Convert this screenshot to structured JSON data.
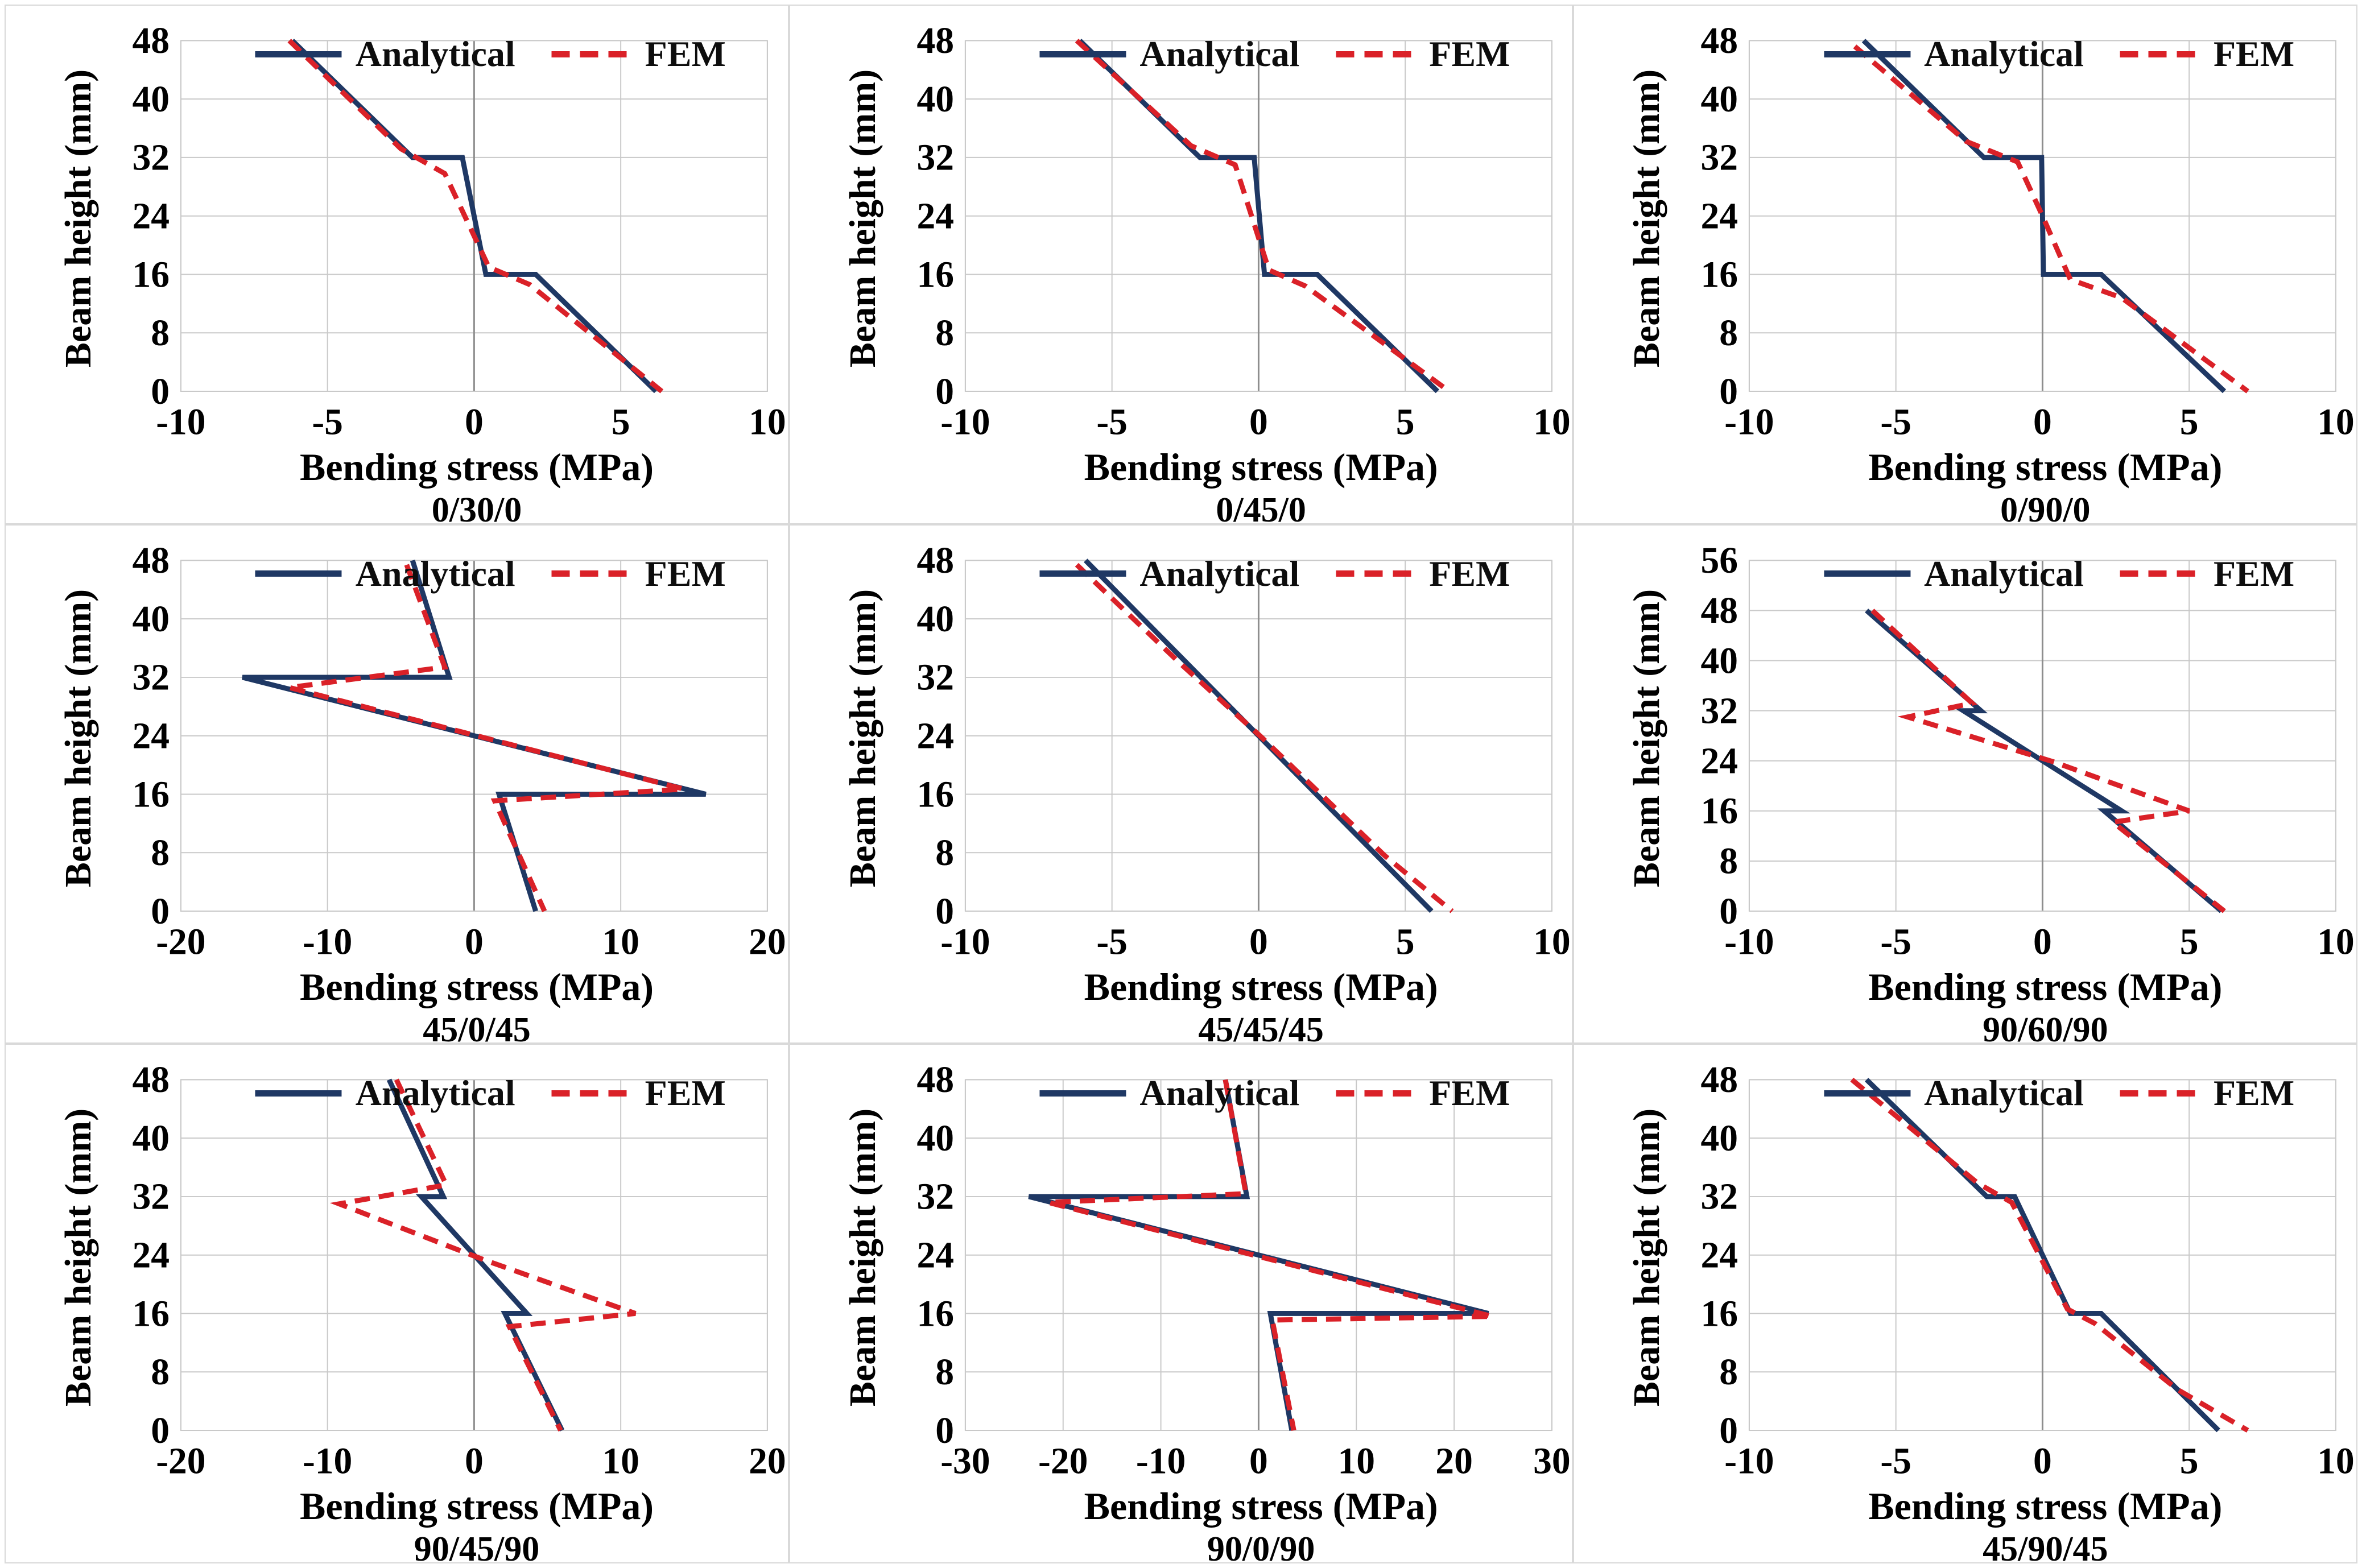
{
  "figure": {
    "legend": {
      "analytical": "Analytical",
      "fem": "FEM"
    },
    "axis": {
      "xlabel": "Bending stress (MPa)",
      "ylabel": "Beam height (mm)"
    },
    "colors": {
      "analytical": "#1F3864",
      "fem": "#DA2128",
      "grid": "#C9C9C9",
      "zero_axis": "#8E8E8E",
      "plot_border": "#C9C9C9",
      "panel_border": "#D9D9D9",
      "text": "#000000"
    }
  },
  "chart_data": [
    {
      "type": "line",
      "title": "0/30/0",
      "xlabel": "Bending stress (MPa)",
      "ylabel": "Beam height (mm)",
      "xlim": [
        -10,
        10
      ],
      "xticks": [
        -10,
        -5,
        0,
        5,
        10
      ],
      "ylim": [
        0,
        48
      ],
      "yticks": [
        0,
        8,
        16,
        24,
        32,
        40,
        48
      ],
      "grid": true,
      "legend_position": "top-center",
      "series": [
        {
          "name": "Analytical",
          "dash": false,
          "points": [
            [
              -6.2,
              48
            ],
            [
              -2.1,
              32
            ],
            [
              -0.4,
              32
            ],
            [
              0.4,
              16
            ],
            [
              2.1,
              16
            ],
            [
              6.2,
              0
            ]
          ]
        },
        {
          "name": "FEM",
          "dash": true,
          "points": [
            [
              -6.3,
              48
            ],
            [
              -2.5,
              33.2
            ],
            [
              -1.0,
              29.8
            ],
            [
              0.5,
              17.0
            ],
            [
              1.9,
              14.6
            ],
            [
              6.4,
              0
            ]
          ]
        }
      ]
    },
    {
      "type": "line",
      "title": "0/45/0",
      "xlabel": "Bending stress (MPa)",
      "ylabel": "Beam height (mm)",
      "xlim": [
        -10,
        10
      ],
      "xticks": [
        -10,
        -5,
        0,
        5,
        10
      ],
      "ylim": [
        0,
        48
      ],
      "yticks": [
        0,
        8,
        16,
        24,
        32,
        40,
        48
      ],
      "grid": true,
      "legend_position": "top-center",
      "series": [
        {
          "name": "Analytical",
          "dash": false,
          "points": [
            [
              -6.1,
              48
            ],
            [
              -2.0,
              32
            ],
            [
              -0.15,
              32
            ],
            [
              0.2,
              16
            ],
            [
              2.0,
              16
            ],
            [
              6.1,
              0
            ]
          ]
        },
        {
          "name": "FEM",
          "dash": true,
          "points": [
            [
              -6.2,
              48
            ],
            [
              -2.3,
              33.6
            ],
            [
              -0.8,
              31.0
            ],
            [
              0.35,
              16.6
            ],
            [
              1.6,
              14.4
            ],
            [
              6.5,
              0
            ]
          ]
        }
      ]
    },
    {
      "type": "line",
      "title": "0/90/0",
      "xlabel": "Bending stress (MPa)",
      "ylabel": "Beam height (mm)",
      "xlim": [
        -10,
        10
      ],
      "xticks": [
        -10,
        -5,
        0,
        5,
        10
      ],
      "ylim": [
        0,
        48
      ],
      "yticks": [
        0,
        8,
        16,
        24,
        32,
        40,
        48
      ],
      "grid": true,
      "legend_position": "top-center",
      "series": [
        {
          "name": "Analytical",
          "dash": false,
          "points": [
            [
              -6.1,
              48
            ],
            [
              -2.0,
              32
            ],
            [
              -0.03,
              32
            ],
            [
              0.03,
              16
            ],
            [
              2.0,
              16
            ],
            [
              6.2,
              0
            ]
          ]
        },
        {
          "name": "FEM",
          "dash": true,
          "points": [
            [
              -6.4,
              47.2
            ],
            [
              -2.6,
              34.2
            ],
            [
              -0.85,
              31.4
            ],
            [
              0.0,
              24.0
            ],
            [
              0.95,
              15.3
            ],
            [
              2.7,
              12.8
            ],
            [
              7.0,
              0
            ]
          ]
        }
      ]
    },
    {
      "type": "line",
      "title": "45/0/45",
      "xlabel": "Bending stress (MPa)",
      "ylabel": "Beam height (mm)",
      "xlim": [
        -20,
        20
      ],
      "xticks": [
        -20,
        -10,
        0,
        10,
        20
      ],
      "ylim": [
        0,
        48
      ],
      "yticks": [
        0,
        8,
        16,
        24,
        32,
        40,
        48
      ],
      "grid": true,
      "legend_position": "top-center",
      "series": [
        {
          "name": "Analytical",
          "dash": false,
          "points": [
            [
              -4.2,
              48
            ],
            [
              -1.7,
              32
            ],
            [
              -15.8,
              32
            ],
            [
              15.8,
              16
            ],
            [
              1.7,
              16
            ],
            [
              4.2,
              0
            ]
          ]
        },
        {
          "name": "FEM",
          "dash": true,
          "points": [
            [
              -4.6,
              47.4
            ],
            [
              -2.0,
              33.4
            ],
            [
              -12.6,
              30.6
            ],
            [
              14.3,
              16.7
            ],
            [
              1.4,
              15.1
            ],
            [
              4.8,
              0
            ]
          ]
        }
      ]
    },
    {
      "type": "line",
      "title": "45/45/45",
      "xlabel": "Bending stress (MPa)",
      "ylabel": "Beam height (mm)",
      "xlim": [
        -10,
        10
      ],
      "xticks": [
        -10,
        -5,
        0,
        5,
        10
      ],
      "ylim": [
        0,
        48
      ],
      "yticks": [
        0,
        8,
        16,
        24,
        32,
        40,
        48
      ],
      "grid": true,
      "legend_position": "top-center",
      "series": [
        {
          "name": "Analytical",
          "dash": false,
          "points": [
            [
              -5.9,
              48
            ],
            [
              5.9,
              0
            ]
          ]
        },
        {
          "name": "FEM",
          "dash": true,
          "points": [
            [
              -6.2,
              47.4
            ],
            [
              -2.7,
              34.0
            ],
            [
              0.1,
              23.8
            ],
            [
              4.3,
              7.6
            ],
            [
              6.6,
              0
            ]
          ]
        }
      ]
    },
    {
      "type": "line",
      "title": "90/60/90",
      "xlabel": "Bending stress (MPa)",
      "ylabel": "Beam height (mm)",
      "xlim": [
        -10,
        10
      ],
      "xticks": [
        -10,
        -5,
        0,
        5,
        10
      ],
      "ylim": [
        0,
        56
      ],
      "yticks": [
        0,
        8,
        16,
        24,
        32,
        40,
        48,
        56
      ],
      "grid": true,
      "legend_position": "top-center",
      "series": [
        {
          "name": "Analytical",
          "dash": false,
          "points": [
            [
              -6.0,
              48
            ],
            [
              -2.1,
              32
            ],
            [
              -2.7,
              32
            ],
            [
              2.7,
              16
            ],
            [
              2.1,
              16
            ],
            [
              6.1,
              0
            ]
          ]
        },
        {
          "name": "FEM",
          "dash": true,
          "points": [
            [
              -5.8,
              48
            ],
            [
              -2.4,
              33.2
            ],
            [
              -4.6,
              31.0
            ],
            [
              0.4,
              23.8
            ],
            [
              5.0,
              16.0
            ],
            [
              2.4,
              14.2
            ],
            [
              6.2,
              0
            ]
          ]
        }
      ]
    },
    {
      "type": "line",
      "title": "90/45/90",
      "xlabel": "Bending stress (MPa)",
      "ylabel": "Beam height (mm)",
      "xlim": [
        -20,
        20
      ],
      "xticks": [
        -20,
        -10,
        0,
        10,
        20
      ],
      "ylim": [
        0,
        48
      ],
      "yticks": [
        0,
        8,
        16,
        24,
        32,
        40,
        48
      ],
      "grid": true,
      "legend_position": "top-center",
      "series": [
        {
          "name": "Analytical",
          "dash": false,
          "points": [
            [
              -5.8,
              48
            ],
            [
              -2.1,
              32
            ],
            [
              -3.6,
              32
            ],
            [
              3.6,
              16
            ],
            [
              2.1,
              16
            ],
            [
              6.0,
              0
            ]
          ]
        },
        {
          "name": "FEM",
          "dash": true,
          "points": [
            [
              -5.3,
              48
            ],
            [
              -1.9,
              33.6
            ],
            [
              -9.2,
              31.0
            ],
            [
              0.6,
              23.4
            ],
            [
              11.0,
              16.0
            ],
            [
              2.4,
              14.2
            ],
            [
              5.9,
              0
            ]
          ]
        }
      ]
    },
    {
      "type": "line",
      "title": "90/0/90",
      "xlabel": "Bending stress (MPa)",
      "ylabel": "Beam height (mm)",
      "xlim": [
        -30,
        30
      ],
      "xticks": [
        -30,
        -20,
        -10,
        0,
        10,
        20,
        30
      ],
      "ylim": [
        0,
        48
      ],
      "yticks": [
        0,
        8,
        16,
        24,
        32,
        40,
        48
      ],
      "grid": true,
      "legend_position": "top-center",
      "series": [
        {
          "name": "Analytical",
          "dash": false,
          "points": [
            [
              -3.4,
              48
            ],
            [
              -1.2,
              32
            ],
            [
              -23.5,
              32
            ],
            [
              23.5,
              16
            ],
            [
              1.2,
              16
            ],
            [
              3.4,
              0
            ]
          ]
        },
        {
          "name": "FEM",
          "dash": true,
          "points": [
            [
              -3.4,
              48
            ],
            [
              -1.3,
              32.4
            ],
            [
              -21.5,
              31.2
            ],
            [
              23.9,
              15.6
            ],
            [
              1.4,
              15.1
            ],
            [
              3.6,
              0
            ]
          ]
        }
      ]
    },
    {
      "type": "line",
      "title": "45/90/45",
      "xlabel": "Bending stress (MPa)",
      "ylabel": "Beam height (mm)",
      "xlim": [
        -10,
        10
      ],
      "xticks": [
        -10,
        -5,
        0,
        5,
        10
      ],
      "ylim": [
        0,
        48
      ],
      "yticks": [
        0,
        8,
        16,
        24,
        32,
        40,
        48
      ],
      "grid": true,
      "legend_position": "top-center",
      "series": [
        {
          "name": "Analytical",
          "dash": false,
          "points": [
            [
              -6.0,
              48
            ],
            [
              -1.9,
              32
            ],
            [
              -0.95,
              32
            ],
            [
              0.95,
              16
            ],
            [
              2.0,
              16
            ],
            [
              6.0,
              0
            ]
          ]
        },
        {
          "name": "FEM",
          "dash": true,
          "points": [
            [
              -6.5,
              48
            ],
            [
              -2.2,
              33.8
            ],
            [
              -1.05,
              31.2
            ],
            [
              0.85,
              16.6
            ],
            [
              1.8,
              14.6
            ],
            [
              4.6,
              5.6
            ],
            [
              7.0,
              0
            ]
          ]
        }
      ]
    }
  ]
}
